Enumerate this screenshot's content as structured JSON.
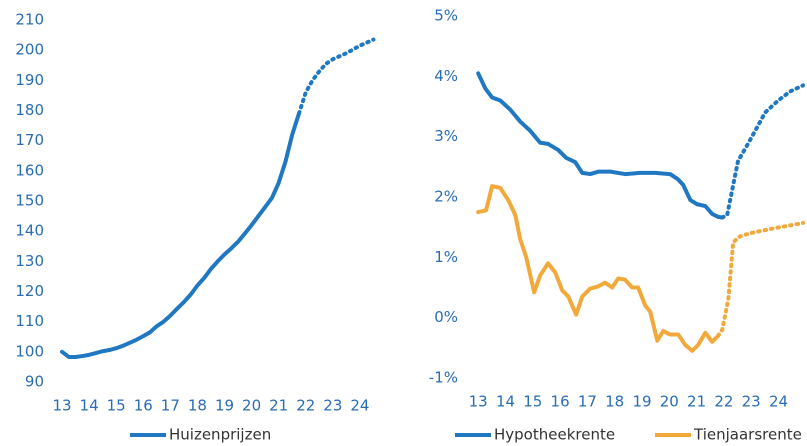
{
  "chart_data": [
    {
      "type": "line",
      "xlim": [
        12.8,
        25.0
      ],
      "xticks": [
        13,
        14,
        15,
        16,
        17,
        18,
        19,
        20,
        21,
        22,
        23,
        24
      ],
      "ylim": [
        90,
        210
      ],
      "yticks": [
        90,
        100,
        110,
        120,
        130,
        140,
        150,
        160,
        170,
        180,
        190,
        200,
        210
      ],
      "legend": "bottom",
      "series": [
        {
          "name": "Huizenprijzen",
          "color": "#1f78c1",
          "dotted_from_x": 21.75,
          "x": [
            13.0,
            13.25,
            13.5,
            13.75,
            14.0,
            14.25,
            14.5,
            14.75,
            15.0,
            15.25,
            15.5,
            15.75,
            16.0,
            16.25,
            16.5,
            16.75,
            17.0,
            17.25,
            17.5,
            17.75,
            18.0,
            18.25,
            18.5,
            18.75,
            19.0,
            19.25,
            19.5,
            19.75,
            20.0,
            20.25,
            20.5,
            20.75,
            21.0,
            21.25,
            21.5,
            21.75,
            22.0,
            22.25,
            22.5,
            22.75,
            23.0,
            23.5,
            24.0,
            24.5
          ],
          "values": [
            100,
            98.3,
            98.3,
            98.6,
            99,
            99.6,
            100.2,
            100.6,
            101.2,
            102,
            103,
            104,
            105.2,
            106.5,
            108.5,
            110,
            112,
            114.3,
            116.5,
            119,
            122,
            124.5,
            127.5,
            130,
            132.3,
            134.3,
            136.5,
            139.2,
            142,
            145,
            148,
            151,
            156,
            163,
            172,
            179,
            186,
            190,
            193,
            195.5,
            197,
            199,
            201.5,
            203.5
          ]
        }
      ]
    },
    {
      "type": "line",
      "xlim": [
        12.7,
        25.0
      ],
      "xticks": [
        13,
        14,
        15,
        16,
        17,
        18,
        19,
        20,
        21,
        22,
        23,
        24
      ],
      "ylim": [
        -1,
        5
      ],
      "yticks": [
        {
          "value": -1,
          "label": "-1%"
        },
        {
          "value": 0,
          "label": "0%"
        },
        {
          "value": 1,
          "label": "1%"
        },
        {
          "value": 2,
          "label": "2%"
        },
        {
          "value": 3,
          "label": "3%"
        },
        {
          "value": 4,
          "label": "4%"
        },
        {
          "value": 5,
          "label": "5%"
        }
      ],
      "legend": "bottom",
      "series": [
        {
          "name": "Hypotheekrente",
          "color": "#1f78c1",
          "dotted_from_x": 21.94,
          "x": [
            13.0,
            13.26,
            13.51,
            13.81,
            14.17,
            14.54,
            14.9,
            15.27,
            15.56,
            15.93,
            16.22,
            16.55,
            16.81,
            17.1,
            17.4,
            17.84,
            18.38,
            18.93,
            19.48,
            20.03,
            20.3,
            20.51,
            20.77,
            21.02,
            21.32,
            21.57,
            21.79,
            21.94,
            22.12,
            22.34,
            22.52,
            22.78,
            23.15,
            23.51,
            23.99,
            24.43,
            24.9
          ],
          "values": [
            4.05,
            3.8,
            3.65,
            3.6,
            3.45,
            3.25,
            3.1,
            2.9,
            2.88,
            2.78,
            2.65,
            2.58,
            2.4,
            2.38,
            2.42,
            2.42,
            2.38,
            2.4,
            2.4,
            2.38,
            2.3,
            2.2,
            1.95,
            1.88,
            1.85,
            1.72,
            1.67,
            1.66,
            1.7,
            2.2,
            2.6,
            2.8,
            3.1,
            3.4,
            3.6,
            3.75,
            3.85
          ]
        },
        {
          "name": "Tienjaarsrente",
          "color": "#f2a93b",
          "dotted_from_x": 21.79,
          "x": [
            13.0,
            13.29,
            13.51,
            13.81,
            14.1,
            14.36,
            14.54,
            14.76,
            15.05,
            15.27,
            15.56,
            15.82,
            16.08,
            16.3,
            16.59,
            16.81,
            17.1,
            17.4,
            17.65,
            17.91,
            18.13,
            18.38,
            18.64,
            18.86,
            19.12,
            19.3,
            19.56,
            19.78,
            20.03,
            20.33,
            20.58,
            20.84,
            21.06,
            21.32,
            21.57,
            21.79,
            21.94,
            22.16,
            22.34,
            22.6,
            22.96,
            23.7,
            24.43,
            24.9
          ],
          "values": [
            1.75,
            1.78,
            2.18,
            2.15,
            1.95,
            1.7,
            1.3,
            1.0,
            0.42,
            0.7,
            0.9,
            0.75,
            0.45,
            0.35,
            0.05,
            0.35,
            0.48,
            0.52,
            0.58,
            0.5,
            0.65,
            0.63,
            0.5,
            0.5,
            0.2,
            0.1,
            -0.38,
            -0.22,
            -0.28,
            -0.28,
            -0.45,
            -0.55,
            -0.45,
            -0.25,
            -0.4,
            -0.3,
            -0.2,
            0.3,
            1.25,
            1.35,
            1.4,
            1.47,
            1.53,
            1.57
          ]
        }
      ]
    }
  ]
}
